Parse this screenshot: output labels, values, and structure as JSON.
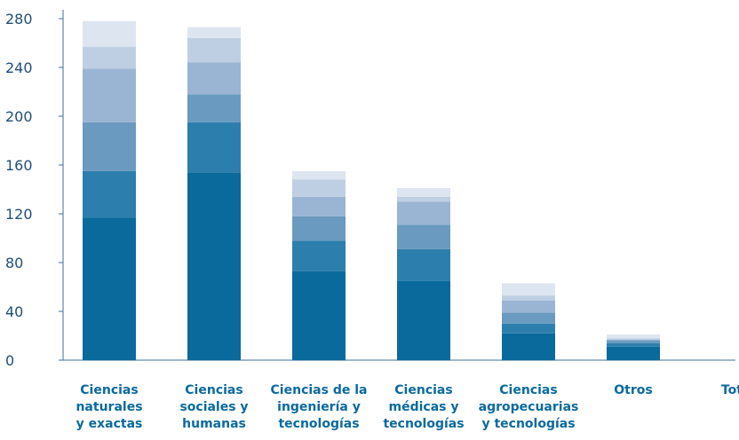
{
  "chart_data": {
    "type": "bar",
    "stacked": true,
    "categories": [
      [
        "Ciencias",
        "naturales",
        "y exactas"
      ],
      [
        "Ciencias",
        "sociales y",
        "humanas"
      ],
      [
        "Ciencias de la",
        "ingeniería y",
        "tecnologías"
      ],
      [
        "Ciencias",
        "médicas  y",
        "tecnologías"
      ],
      [
        "Ciencias",
        "agropecuarias",
        "y tecnologías"
      ],
      [
        "Otros"
      ],
      [
        "Total"
      ]
    ],
    "series": [
      {
        "values": [
          117,
          154,
          73,
          65,
          22,
          11,
          0
        ],
        "color": "#0a6a9c"
      },
      {
        "values": [
          38,
          41,
          25,
          26,
          8,
          3,
          0
        ],
        "color": "#2c7fac"
      },
      {
        "values": [
          40,
          23,
          20,
          20,
          9,
          2,
          0
        ],
        "color": "#6a9abf"
      },
      {
        "values": [
          44,
          26,
          16,
          19,
          10,
          1,
          0
        ],
        "color": "#9ab4d3"
      },
      {
        "values": [
          18,
          20,
          14,
          4,
          4,
          1,
          0
        ],
        "color": "#bfcfe3"
      },
      {
        "values": [
          21,
          9,
          7,
          7,
          10,
          3,
          0
        ],
        "color": "#dde5f0"
      }
    ],
    "ylim": [
      0,
      280
    ],
    "yticks": [
      0,
      40,
      80,
      120,
      160,
      200,
      240,
      280
    ],
    "xlabel": "",
    "ylabel": "",
    "title": "",
    "grid": false,
    "legend": "none",
    "axis_color": "#3d6f9c"
  }
}
